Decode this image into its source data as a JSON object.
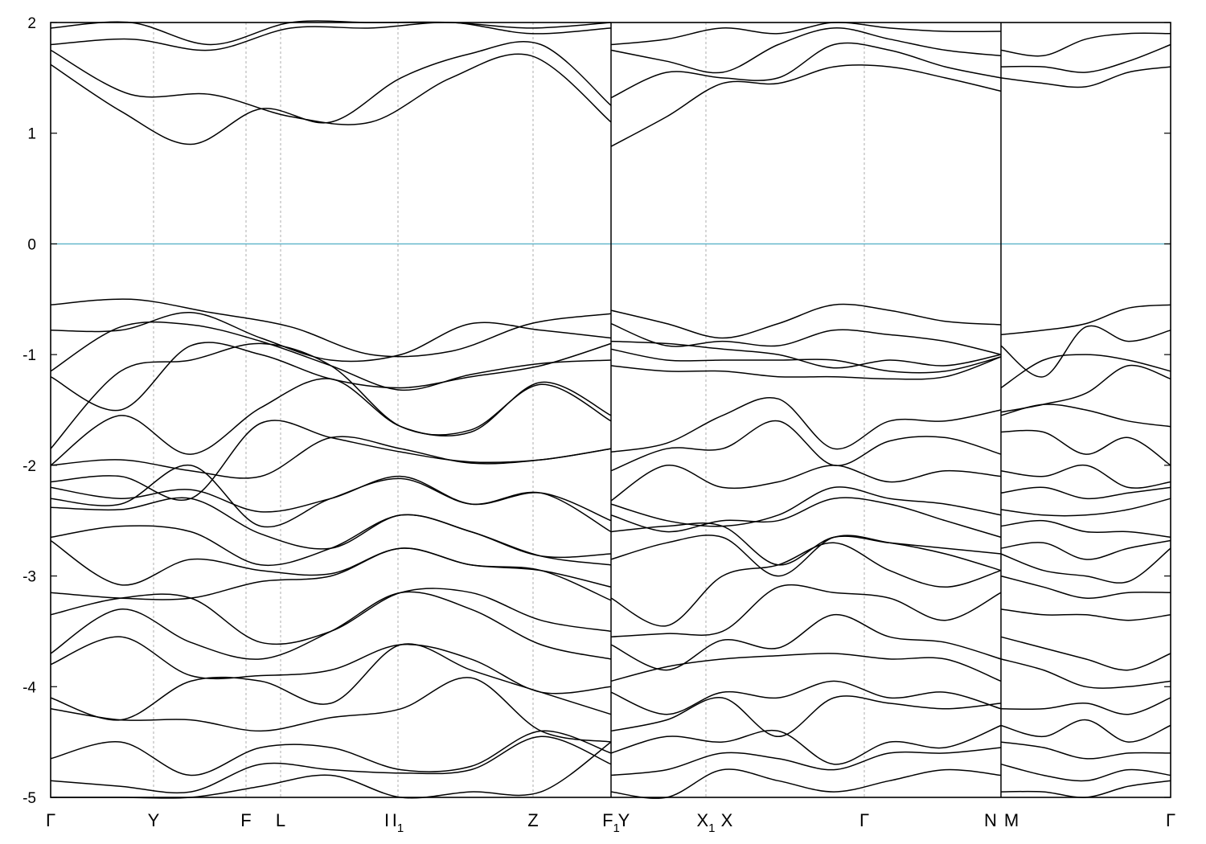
{
  "chart_data": {
    "type": "line",
    "title": "",
    "xlabel": "",
    "ylabel": "",
    "ylim": [
      -5,
      2
    ],
    "yticks": [
      -5,
      -4,
      -3,
      -2,
      -1,
      0,
      1,
      2
    ],
    "ytick_labels": [
      "-5",
      "-4",
      "-3",
      "-2",
      "-1",
      "0",
      "1",
      "2"
    ],
    "fermi_level": 0,
    "fermi_color": "#5bb3c8",
    "band_color": "#000000",
    "grid": "vertical dashed at k-points",
    "legend": "none",
    "x_range": [
      0,
      1393
    ],
    "kpoints": [
      {
        "label": "Γ",
        "sub": "",
        "x": 0
      },
      {
        "label": "Y",
        "sub": "",
        "x": 128
      },
      {
        "label": "F",
        "sub": "",
        "x": 243
      },
      {
        "label": "L",
        "sub": "",
        "x": 286
      },
      {
        "label": "I",
        "sub": "",
        "x": 418
      },
      {
        "label": "I",
        "sub": "1",
        "x": 432
      },
      {
        "label": "Z",
        "sub": "",
        "x": 600
      },
      {
        "label": "F",
        "sub": "1",
        "x": 697
      },
      {
        "label": "Y",
        "sub": "",
        "x": 713
      },
      {
        "label": "X",
        "sub": "1",
        "x": 815
      },
      {
        "label": "X",
        "sub": "",
        "x": 841
      },
      {
        "label": "Γ",
        "sub": "",
        "x": 1012
      },
      {
        "label": "N",
        "sub": "",
        "x": 1169
      },
      {
        "label": "M",
        "sub": "",
        "x": 1195
      },
      {
        "label": "Γ",
        "sub": "",
        "x": 1393
      }
    ],
    "gridlines_x": [
      128,
      243,
      286,
      432,
      600,
      697,
      815,
      1012,
      1182
    ],
    "discontinuities_x": [
      697,
      1182
    ],
    "segments": [
      {
        "x0": 0,
        "x1": 697,
        "bands": [
          [
            1.95,
            2.0,
            1.8,
            2.0,
            2.0,
            2.0,
            1.95,
            2.0
          ],
          [
            1.8,
            1.85,
            1.75,
            1.95,
            1.95,
            2.0,
            1.9,
            1.95
          ],
          [
            1.75,
            1.35,
            1.35,
            1.15,
            1.1,
            1.5,
            1.7,
            1.1
          ],
          [
            1.62,
            1.2,
            0.9,
            1.22,
            1.1,
            1.5,
            1.72,
            1.8,
            1.25
          ],
          [
            -0.55,
            -0.5,
            -0.62,
            -0.75,
            -1.0,
            -0.97,
            -0.72,
            -0.63
          ],
          [
            -0.78,
            -0.78,
            -0.62,
            -0.85,
            -1.05,
            -1.0,
            -0.72,
            -0.78,
            -0.85
          ],
          [
            -1.15,
            -0.75,
            -0.73,
            -0.88,
            -1.1,
            -1.32,
            -1.18,
            -1.08,
            -1.05
          ],
          [
            -1.2,
            -1.5,
            -0.92,
            -1.0,
            -1.22,
            -1.3,
            -1.2,
            -1.1,
            -0.9
          ],
          [
            -1.85,
            -1.15,
            -1.05,
            -0.9,
            -1.1,
            -1.65,
            -1.68,
            -1.27,
            -1.6
          ],
          [
            -2.0,
            -1.55,
            -1.9,
            -1.48,
            -1.22,
            -1.65,
            -1.7,
            -1.25,
            -1.55
          ],
          [
            -2.0,
            -1.95,
            -2.05,
            -2.1,
            -1.75,
            -1.85,
            -1.98,
            -1.95,
            -1.85
          ],
          [
            -2.15,
            -2.1,
            -2.3,
            -1.62,
            -1.75,
            -1.88,
            -1.97,
            -1.95,
            -1.85
          ],
          [
            -2.2,
            -2.3,
            -2.22,
            -2.42,
            -2.3,
            -2.1,
            -2.35,
            -2.25,
            -2.5
          ],
          [
            -2.3,
            -2.35,
            -2.0,
            -2.55,
            -2.3,
            -2.12,
            -2.35,
            -2.25,
            -2.6
          ],
          [
            -2.38,
            -2.4,
            -2.3,
            -2.62,
            -2.75,
            -2.45,
            -2.6,
            -2.82,
            -2.8
          ],
          [
            -2.65,
            -2.55,
            -2.6,
            -2.9,
            -2.75,
            -2.45,
            -2.6,
            -2.82,
            -2.9
          ],
          [
            -2.68,
            -3.08,
            -2.85,
            -2.95,
            -2.98,
            -2.75,
            -2.9,
            -2.95,
            -3.1
          ],
          [
            -3.15,
            -3.2,
            -3.2,
            -3.05,
            -3.0,
            -2.75,
            -2.9,
            -2.95,
            -3.22
          ],
          [
            -3.35,
            -3.2,
            -3.2,
            -3.6,
            -3.5,
            -3.15,
            -3.15,
            -3.4,
            -3.5
          ],
          [
            -3.7,
            -3.3,
            -3.6,
            -3.75,
            -3.5,
            -3.15,
            -3.3,
            -3.62,
            -3.75
          ],
          [
            -3.8,
            -3.55,
            -3.9,
            -3.9,
            -3.85,
            -3.62,
            -3.75,
            -4.05,
            -4.0
          ],
          [
            -4.1,
            -4.3,
            -3.95,
            -3.95,
            -4.15,
            -3.62,
            -3.85,
            -4.05,
            -4.25
          ],
          [
            -4.2,
            -4.3,
            -4.3,
            -4.4,
            -4.28,
            -4.2,
            -3.92,
            -4.4,
            -4.5
          ],
          [
            -4.65,
            -4.5,
            -4.8,
            -4.55,
            -4.55,
            -4.75,
            -4.72,
            -4.4,
            -4.6
          ],
          [
            -4.85,
            -4.9,
            -4.95,
            -4.7,
            -4.75,
            -4.78,
            -4.75,
            -4.45,
            -4.7
          ],
          [
            -5.0,
            -5.0,
            -5.0,
            -4.9,
            -4.8,
            -5.0,
            -4.95,
            -4.95,
            -4.5
          ]
        ]
      },
      {
        "x0": 697,
        "x1": 1182,
        "bands": [
          [
            1.8,
            1.85,
            1.95,
            1.9,
            2.0,
            1.95,
            1.92,
            1.92
          ],
          [
            1.75,
            1.65,
            1.55,
            1.8,
            1.95,
            1.85,
            1.75,
            1.7
          ],
          [
            1.32,
            1.55,
            1.5,
            1.5,
            1.8,
            1.75,
            1.6,
            1.5
          ],
          [
            0.88,
            1.15,
            1.45,
            1.45,
            1.6,
            1.6,
            1.5,
            1.38
          ],
          [
            -0.6,
            -0.72,
            -0.85,
            -0.72,
            -0.55,
            -0.6,
            -0.7,
            -0.73
          ],
          [
            -0.72,
            -0.92,
            -0.88,
            -0.92,
            -0.78,
            -0.82,
            -0.88,
            -1.0
          ],
          [
            -0.88,
            -0.9,
            -0.95,
            -1.0,
            -1.12,
            -1.05,
            -1.1,
            -1.0
          ],
          [
            -0.95,
            -1.05,
            -1.05,
            -1.05,
            -1.05,
            -1.15,
            -1.15,
            -1.02
          ],
          [
            -1.1,
            -1.15,
            -1.15,
            -1.2,
            -1.2,
            -1.22,
            -1.2,
            -1.02
          ],
          [
            -1.88,
            -1.8,
            -1.55,
            -1.4,
            -1.85,
            -1.6,
            -1.6,
            -1.5
          ],
          [
            -2.05,
            -1.85,
            -1.85,
            -1.6,
            -2.0,
            -1.78,
            -1.75,
            -1.9
          ],
          [
            -2.32,
            -2.0,
            -2.2,
            -2.15,
            -2.0,
            -2.15,
            -2.05,
            -2.1
          ],
          [
            -2.35,
            -2.5,
            -2.55,
            -2.45,
            -2.2,
            -2.3,
            -2.35,
            -2.45
          ],
          [
            -2.45,
            -2.6,
            -2.5,
            -2.5,
            -2.3,
            -2.35,
            -2.5,
            -2.65
          ],
          [
            -2.6,
            -2.55,
            -2.55,
            -2.9,
            -2.65,
            -2.7,
            -2.75,
            -2.8
          ],
          [
            -2.85,
            -2.7,
            -2.65,
            -3.0,
            -2.65,
            -2.7,
            -2.8,
            -2.95
          ],
          [
            -3.2,
            -3.45,
            -3.0,
            -2.9,
            -2.7,
            -2.95,
            -3.1,
            -2.95
          ],
          [
            -3.55,
            -3.52,
            -3.5,
            -3.1,
            -3.15,
            -3.2,
            -3.4,
            -3.15
          ],
          [
            -3.62,
            -3.85,
            -3.58,
            -3.65,
            -3.35,
            -3.55,
            -3.6,
            -3.75
          ],
          [
            -3.95,
            -3.82,
            -3.75,
            -3.72,
            -3.7,
            -3.75,
            -3.75,
            -3.95
          ],
          [
            -4.05,
            -4.25,
            -4.05,
            -4.1,
            -3.95,
            -4.1,
            -4.05,
            -4.2
          ],
          [
            -4.4,
            -4.3,
            -4.1,
            -4.45,
            -4.1,
            -4.15,
            -4.2,
            -4.15
          ],
          [
            -4.6,
            -4.45,
            -4.5,
            -4.4,
            -4.7,
            -4.5,
            -4.55,
            -4.35
          ],
          [
            -4.8,
            -4.75,
            -4.6,
            -4.65,
            -4.75,
            -4.6,
            -4.6,
            -4.55
          ],
          [
            -4.95,
            -5.0,
            -4.75,
            -4.85,
            -4.95,
            -4.85,
            -4.75,
            -4.8
          ]
        ]
      },
      {
        "x0": 1182,
        "x1": 1393,
        "bands": [
          [
            1.75,
            1.7,
            1.85,
            1.9,
            1.9
          ],
          [
            1.6,
            1.6,
            1.55,
            1.65,
            1.8
          ],
          [
            1.5,
            1.45,
            1.42,
            1.55,
            1.6
          ],
          [
            -0.82,
            -0.78,
            -0.72,
            -0.58,
            -0.55
          ],
          [
            -0.92,
            -1.2,
            -0.75,
            -0.88,
            -0.78
          ],
          [
            -1.3,
            -1.05,
            -1.0,
            -1.05,
            -1.15
          ],
          [
            -1.52,
            -1.45,
            -1.35,
            -1.1,
            -1.22
          ],
          [
            -1.55,
            -1.45,
            -1.5,
            -1.6,
            -1.65
          ],
          [
            -1.7,
            -1.7,
            -1.9,
            -1.75,
            -2.0
          ],
          [
            -2.05,
            -2.1,
            -2.0,
            -2.2,
            -2.15
          ],
          [
            -2.25,
            -2.2,
            -2.3,
            -2.25,
            -2.2
          ],
          [
            -2.4,
            -2.45,
            -2.45,
            -2.4,
            -2.3
          ],
          [
            -2.55,
            -2.5,
            -2.6,
            -2.6,
            -2.65
          ],
          [
            -2.75,
            -2.7,
            -2.85,
            -2.75,
            -2.68
          ],
          [
            -2.8,
            -2.95,
            -3.0,
            -3.05,
            -2.75
          ],
          [
            -3.0,
            -3.1,
            -3.2,
            -3.15,
            -3.15
          ],
          [
            -3.3,
            -3.35,
            -3.35,
            -3.4,
            -3.35
          ],
          [
            -3.55,
            -3.65,
            -3.75,
            -3.85,
            -3.7
          ],
          [
            -3.75,
            -3.85,
            -4.0,
            -4.0,
            -3.95
          ],
          [
            -4.2,
            -4.2,
            -4.15,
            -4.25,
            -4.1
          ],
          [
            -4.35,
            -4.45,
            -4.3,
            -4.5,
            -4.35
          ],
          [
            -4.5,
            -4.55,
            -4.65,
            -4.6,
            -4.6
          ],
          [
            -4.7,
            -4.8,
            -4.85,
            -4.75,
            -4.8
          ],
          [
            -4.95,
            -4.95,
            -5.0,
            -4.9,
            -4.85
          ]
        ]
      }
    ]
  }
}
